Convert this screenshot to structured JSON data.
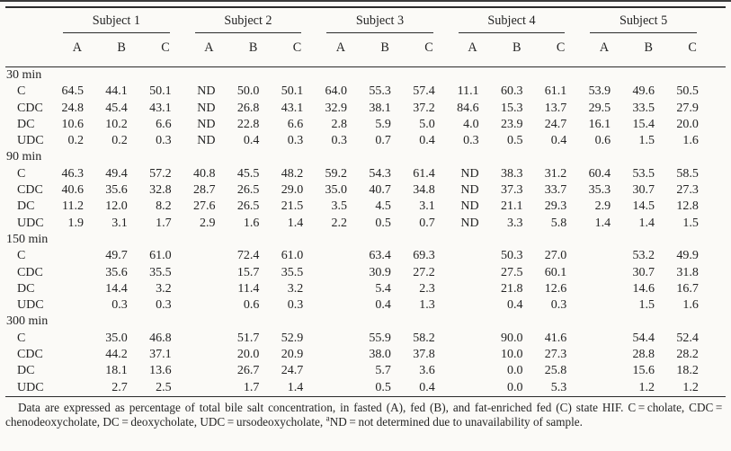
{
  "page": {
    "background": "#fbfaf7",
    "text_color": "#242424",
    "rule_color": "#2b2b2b"
  },
  "table": {
    "subjects": [
      "Subject 1",
      "Subject 2",
      "Subject 3",
      "Subject 4",
      "Subject 5"
    ],
    "column_letters": [
      "A",
      "B",
      "C"
    ],
    "time_sections": [
      {
        "label": "30 min",
        "rows": [
          {
            "label": "C",
            "values": [
              "64.5",
              "44.1",
              "50.1",
              "ND",
              "50.0",
              "50.1",
              "64.0",
              "55.3",
              "57.4",
              "11.1",
              "60.3",
              "61.1",
              "53.9",
              "49.6",
              "50.5"
            ]
          },
          {
            "label": "CDC",
            "values": [
              "24.8",
              "45.4",
              "43.1",
              "ND",
              "26.8",
              "43.1",
              "32.9",
              "38.1",
              "37.2",
              "84.6",
              "15.3",
              "13.7",
              "29.5",
              "33.5",
              "27.9"
            ]
          },
          {
            "label": "DC",
            "values": [
              "10.6",
              "10.2",
              "6.6",
              "ND",
              "22.8",
              "6.6",
              "2.8",
              "5.9",
              "5.0",
              "4.0",
              "23.9",
              "24.7",
              "16.1",
              "15.4",
              "20.0"
            ]
          },
          {
            "label": "UDC",
            "values": [
              "0.2",
              "0.2",
              "0.3",
              "ND",
              "0.4",
              "0.3",
              "0.3",
              "0.7",
              "0.4",
              "0.3",
              "0.5",
              "0.4",
              "0.6",
              "1.5",
              "1.6"
            ]
          }
        ]
      },
      {
        "label": "90 min",
        "rows": [
          {
            "label": "C",
            "values": [
              "46.3",
              "49.4",
              "57.2",
              "40.8",
              "45.5",
              "48.2",
              "59.2",
              "54.3",
              "61.4",
              "ND",
              "38.3",
              "31.2",
              "60.4",
              "53.5",
              "58.5"
            ]
          },
          {
            "label": "CDC",
            "values": [
              "40.6",
              "35.6",
              "32.8",
              "28.7",
              "26.5",
              "29.0",
              "35.0",
              "40.7",
              "34.8",
              "ND",
              "37.3",
              "33.7",
              "35.3",
              "30.7",
              "27.3"
            ]
          },
          {
            "label": "DC",
            "values": [
              "11.2",
              "12.0",
              "8.2",
              "27.6",
              "26.5",
              "21.5",
              "3.5",
              "4.5",
              "3.1",
              "ND",
              "21.1",
              "29.3",
              "2.9",
              "14.5",
              "12.8"
            ]
          },
          {
            "label": "UDC",
            "values": [
              "1.9",
              "3.1",
              "1.7",
              "2.9",
              "1.6",
              "1.4",
              "2.2",
              "0.5",
              "0.7",
              "ND",
              "3.3",
              "5.8",
              "1.4",
              "1.4",
              "1.5"
            ]
          }
        ]
      },
      {
        "label": "150 min",
        "rows": [
          {
            "label": "C",
            "values": [
              "",
              "49.7",
              "61.0",
              "",
              "72.4",
              "61.0",
              "",
              "63.4",
              "69.3",
              "",
              "50.3",
              "27.0",
              "",
              "53.2",
              "49.9"
            ]
          },
          {
            "label": "CDC",
            "values": [
              "",
              "35.6",
              "35.5",
              "",
              "15.7",
              "35.5",
              "",
              "30.9",
              "27.2",
              "",
              "27.5",
              "60.1",
              "",
              "30.7",
              "31.8"
            ]
          },
          {
            "label": "DC",
            "values": [
              "",
              "14.4",
              "3.2",
              "",
              "11.4",
              "3.2",
              "",
              "5.4",
              "2.3",
              "",
              "21.8",
              "12.6",
              "",
              "14.6",
              "16.7"
            ]
          },
          {
            "label": "UDC",
            "values": [
              "",
              "0.3",
              "0.3",
              "",
              "0.6",
              "0.3",
              "",
              "0.4",
              "1.3",
              "",
              "0.4",
              "0.3",
              "",
              "1.5",
              "1.6"
            ]
          }
        ]
      },
      {
        "label": "300 min",
        "rows": [
          {
            "label": "C",
            "values": [
              "",
              "35.0",
              "46.8",
              "",
              "51.7",
              "52.9",
              "",
              "55.9",
              "58.2",
              "",
              "90.0",
              "41.6",
              "",
              "54.4",
              "52.4"
            ]
          },
          {
            "label": "CDC",
            "values": [
              "",
              "44.2",
              "37.1",
              "",
              "20.0",
              "20.9",
              "",
              "38.0",
              "37.8",
              "",
              "10.0",
              "27.3",
              "",
              "28.8",
              "28.2"
            ]
          },
          {
            "label": "DC",
            "values": [
              "",
              "18.1",
              "13.6",
              "",
              "26.7",
              "24.7",
              "",
              "5.7",
              "3.6",
              "",
              "0.0",
              "25.8",
              "",
              "15.6",
              "18.2"
            ]
          },
          {
            "label": "UDC",
            "values": [
              "",
              "2.7",
              "2.5",
              "",
              "1.7",
              "1.4",
              "",
              "0.5",
              "0.4",
              "",
              "0.0",
              "5.3",
              "",
              "1.2",
              "1.2"
            ]
          }
        ]
      }
    ]
  },
  "footnote": {
    "part1": "Data are expressed as percentage of total bile salt concentration, in fasted (A), fed (B), and fat-enriched fed (C) state HIF. C = cholate, CDC = chenodeoxycholate, DC = deoxycholate, UDC = ursodeoxycholate, ",
    "sup": "a",
    "part2": "ND = not determined due to unavailability of sample."
  }
}
